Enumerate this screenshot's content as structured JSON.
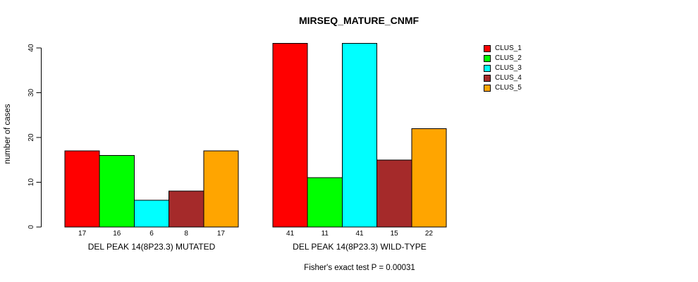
{
  "chart_data": {
    "type": "bar",
    "title": "MIRSEQ_MATURE_CNMF",
    "xlabel": "",
    "ylabel": "number of cases",
    "ylim": [
      0,
      40
    ],
    "yticks": [
      0,
      10,
      20,
      30,
      40
    ],
    "series": [
      "CLUS_1",
      "CLUS_2",
      "CLUS_3",
      "CLUS_4",
      "CLUS_5"
    ],
    "colors": [
      "#FF0000",
      "#00FF00",
      "#00FFFF",
      "#A52A2A",
      "#FFA500"
    ],
    "groups": [
      {
        "label": "DEL PEAK 14(8P23.3) MUTATED",
        "values": [
          17,
          16,
          6,
          8,
          17
        ]
      },
      {
        "label": "DEL PEAK 14(8P23.3) WILD-TYPE",
        "values": [
          41,
          11,
          41,
          15,
          22
        ]
      }
    ],
    "bar_value_labels": true,
    "annotation": "Fisher's exact test P = 0.00031",
    "legend_position": "right",
    "grid": false
  }
}
